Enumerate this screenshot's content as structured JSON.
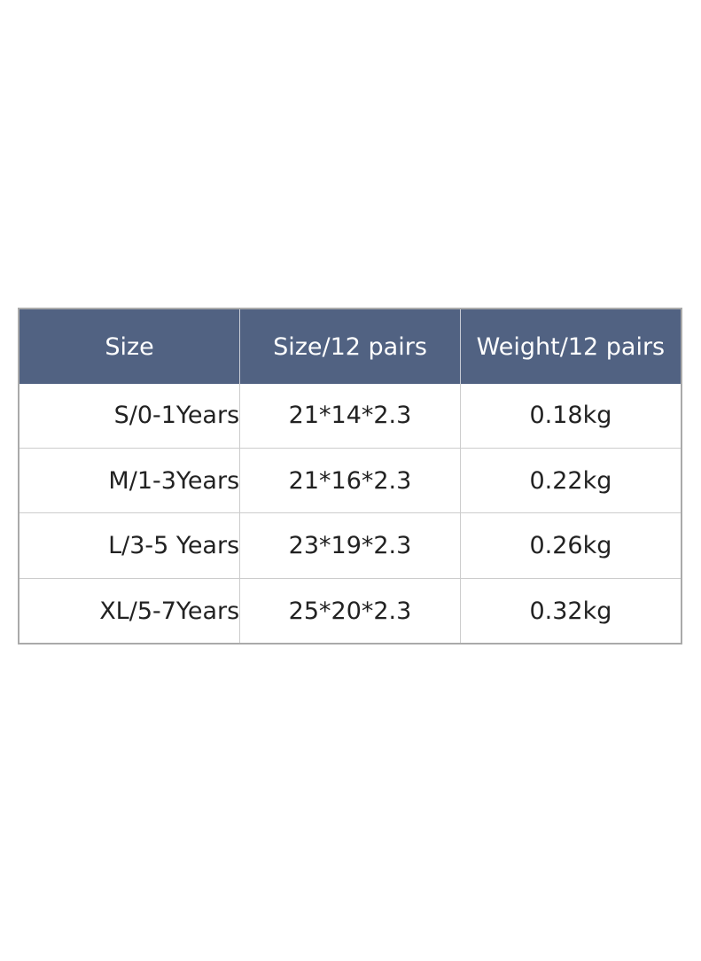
{
  "table": {
    "header": [
      "Size",
      "Size/12 pairs",
      "Weight/12 pairs"
    ],
    "rows": [
      [
        "S/0-1Years",
        "21*14*2.3",
        "0.18kg"
      ],
      [
        "M/1-3Years",
        "21*16*2.3",
        "0.22kg"
      ],
      [
        "L/3-5 Years",
        "23*19*2.3",
        "0.26kg"
      ],
      [
        "XL/5-7Years",
        "25*20*2.3",
        "0.32kg"
      ]
    ]
  }
}
